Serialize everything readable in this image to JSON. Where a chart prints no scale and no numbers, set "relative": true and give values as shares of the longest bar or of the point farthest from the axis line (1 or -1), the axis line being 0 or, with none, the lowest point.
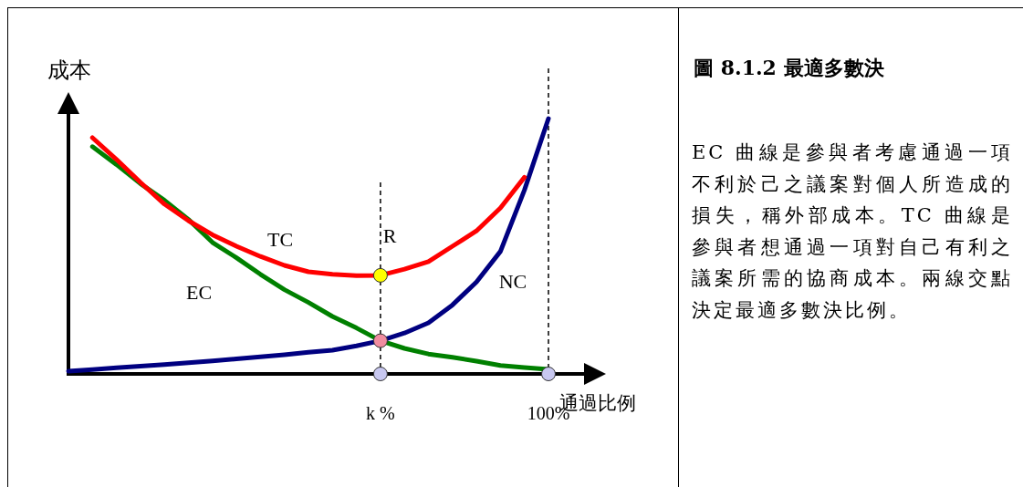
{
  "chart_data": {
    "type": "line",
    "relative": true,
    "title": "圖 8.1.2 最適多數決",
    "xlabel": "通過比例",
    "ylabel": "成本",
    "grid": false,
    "marker": "none",
    "line_style": "solid",
    "categories": [
      null,
      null,
      null,
      null,
      null,
      null,
      null,
      null,
      null,
      null,
      null,
      null,
      null,
      "k %",
      null,
      null,
      null,
      null,
      null,
      null,
      "100%"
    ],
    "series": [
      {
        "color": "#008000",
        "values": [
          null,
          0.89,
          0.82,
          0.745,
          0.68,
          0.605,
          0.515,
          0.455,
          0.39,
          0.33,
          0.28,
          0.225,
          0.18,
          0.13,
          0.1,
          0.078,
          0.065,
          0.05,
          0.033,
          0.025,
          0.018
        ]
      },
      {
        "color": "#000080",
        "values": [
          0.011,
          0.017,
          0.024,
          0.03,
          0.037,
          0.044,
          0.051,
          0.059,
          0.067,
          0.075,
          0.085,
          0.093,
          0.11,
          0.13,
          0.16,
          0.2,
          0.27,
          0.36,
          0.48,
          0.72,
          1.0
        ]
      },
      {
        "color": "#ff0000",
        "values": [
          null,
          0.925,
          0.84,
          0.75,
          0.665,
          0.6,
          0.545,
          0.5,
          0.46,
          0.425,
          0.4,
          0.39,
          0.385,
          0.386,
          0.41,
          0.44,
          0.5,
          0.56,
          0.65,
          0.77,
          null
        ]
      },
      {
        "type": "scatter",
        "marker": "circle",
        "x": [
          "k %",
          "k %",
          "k %",
          "100%"
        ],
        "values": [
          0.386,
          0.13,
          0,
          0
        ],
        "colors": [
          "#ffff00",
          "#f08ca0",
          "#c8c8f0",
          "#c8c8f0"
        ]
      }
    ],
    "ref_lines": [
      {
        "axis": "x",
        "value": "k %",
        "line_style": "dashed",
        "color": "#000000"
      },
      {
        "axis": "x",
        "value": "100%",
        "line_style": "dashed",
        "color": "#000000"
      }
    ],
    "annotations": [
      "TC",
      "EC",
      "NC",
      "R",
      "EC 曲線是參與者考慮通過一項不利於己之議案對個人所造成的損失，稱外部成本。TC 曲線是參與者想通過一項對自己有利之議案所需的協商成本。兩線交點決定最適多數決比例。"
    ]
  }
}
